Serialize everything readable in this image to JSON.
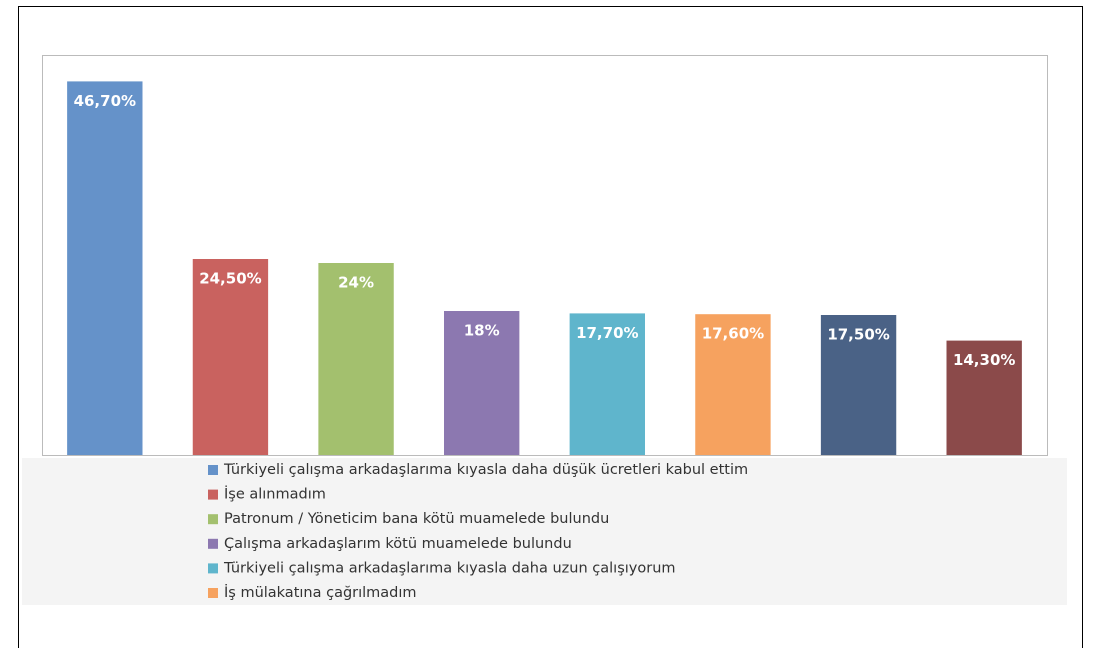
{
  "chart_data": {
    "type": "bar",
    "categories": [
      "Türkiyeli çalışma arkadaşlarıma kıyasla daha düşük ücretleri kabul ettim",
      "İşe alınmadım",
      "Patronum / Yöneticim bana kötü muamelede bulundu",
      "Çalışma arkadaşlarım kötü muamelede bulundu",
      "Türkiyeli çalışma arkadaşlarıma kıyasla daha uzun çalışıyorum",
      "İş mülakatına çağrılmadım",
      null,
      null
    ],
    "values": [
      46.7,
      24.5,
      24,
      18,
      17.7,
      17.6,
      17.5,
      14.3
    ],
    "value_labels": [
      "46,70%",
      "24,50%",
      "24%",
      "18%",
      "17,70%",
      "17,60%",
      "17,50%",
      "14,30%"
    ],
    "colors": [
      "#6592c9",
      "#c9625f",
      "#a3c06e",
      "#8c78b0",
      "#5fb5cc",
      "#f6a25f",
      "#4a6286",
      "#8b4a4a"
    ],
    "ylim": [
      0,
      50
    ]
  }
}
